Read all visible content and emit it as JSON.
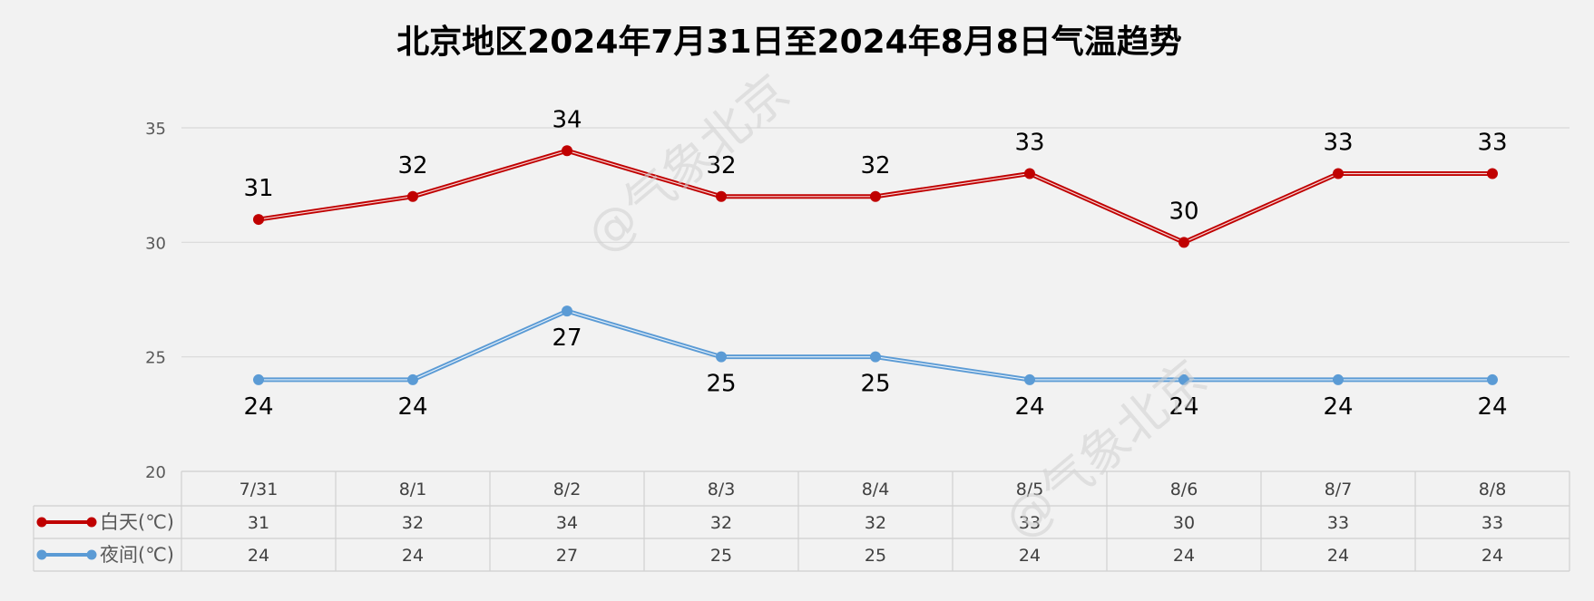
{
  "watermark": "@气象北京",
  "chart_data": {
    "type": "line",
    "title": "北京地区2024年7月31日至2024年8月8日气温趋势",
    "categories": [
      "7/31",
      "8/1",
      "8/2",
      "8/3",
      "8/4",
      "8/5",
      "8/6",
      "8/7",
      "8/8"
    ],
    "ylim": [
      20,
      35
    ],
    "yticks": [
      20,
      25,
      30,
      35
    ],
    "grid": true,
    "legend": "data-table-left",
    "series": [
      {
        "name": "白天(℃)",
        "values": [
          31,
          32,
          34,
          32,
          32,
          33,
          30,
          33,
          33
        ],
        "color": "#c00000",
        "label_position": "above"
      },
      {
        "name": "夜间(℃)",
        "values": [
          24,
          24,
          27,
          25,
          25,
          24,
          24,
          24,
          24
        ],
        "color": "#5b9bd5",
        "label_position": "below"
      }
    ]
  }
}
